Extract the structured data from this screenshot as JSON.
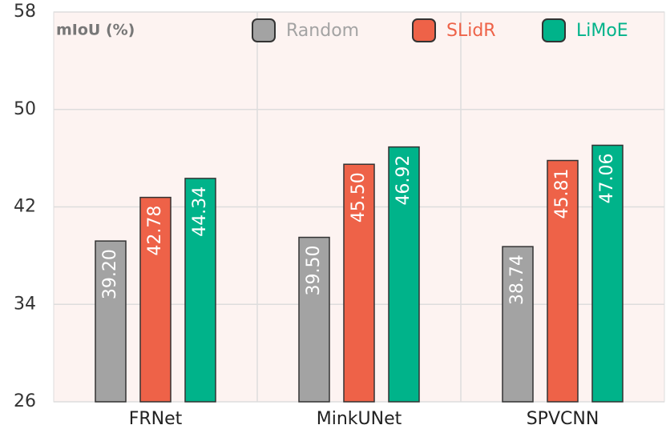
{
  "chart_data": {
    "type": "bar",
    "ylabel": "mIoU (%)",
    "categories": [
      "FRNet",
      "MinkUNet",
      "SPVCNN"
    ],
    "series": [
      {
        "name": "Random",
        "color": "#a3a3a3",
        "values": [
          39.2,
          39.5,
          38.74
        ],
        "value_labels": [
          "39.20",
          "39.50",
          "38.74"
        ]
      },
      {
        "name": "SLidR",
        "color": "#ee6248",
        "values": [
          42.78,
          45.5,
          45.81
        ],
        "value_labels": [
          "42.78",
          "45.50",
          "45.81"
        ]
      },
      {
        "name": "LiMoE",
        "color": "#00b38a",
        "values": [
          44.34,
          46.92,
          47.06
        ],
        "value_labels": [
          "44.34",
          "46.92",
          "47.06"
        ]
      }
    ],
    "ylim": [
      26,
      58
    ],
    "yticks": [
      26,
      34,
      42,
      50,
      58
    ],
    "grid": true,
    "legend": "top"
  }
}
